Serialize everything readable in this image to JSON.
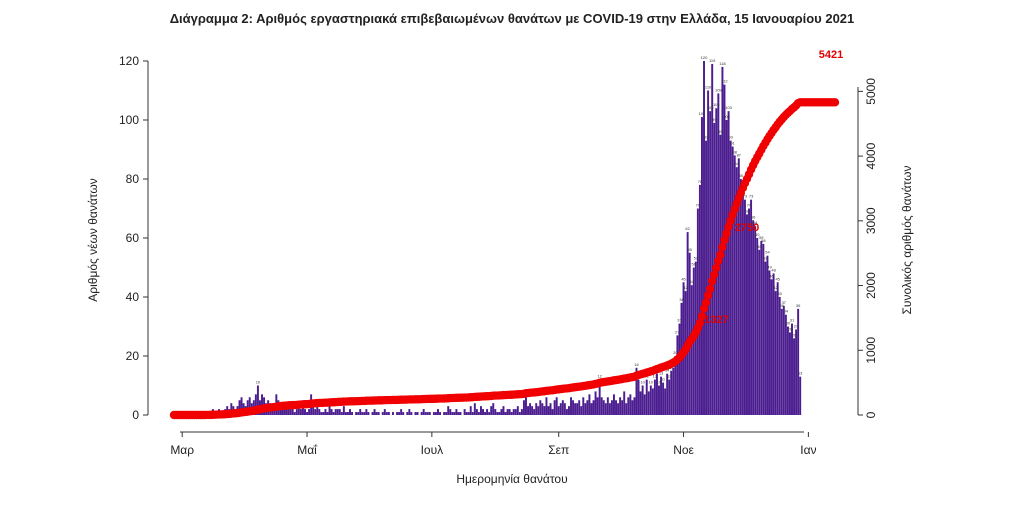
{
  "chart_data": {
    "type": "bar+line",
    "title": "Διάγραμμα 2: Αριθμός εργαστηριακά επιβεβαιωμένων θανάτων με COVID-19 στην Ελλάδα, 15 Ιανουαρίου 2021",
    "xlabel": "Ημερομηνία θανάτου",
    "ylabel_left": "Αριθμός νέων θανάτων",
    "ylabel_right": "Συνολικός αριθμός θανάτων",
    "ylim_left": [
      0,
      120
    ],
    "ylim_right": [
      0,
      5500
    ],
    "yticks_left": [
      0,
      20,
      40,
      60,
      80,
      100,
      120
    ],
    "yticks_right": [
      0,
      1000,
      2000,
      3000,
      4000,
      5000
    ],
    "x_start": "2020-02-26",
    "x_end": "2021-01-14",
    "x_ticks": [
      {
        "label": "Μαρ",
        "date": "2020-03-01"
      },
      {
        "label": "Μαΐ",
        "date": "2020-05-01"
      },
      {
        "label": "Ιουλ",
        "date": "2020-07-01"
      },
      {
        "label": "Σεπ",
        "date": "2020-09-01"
      },
      {
        "label": "Νοε",
        "date": "2020-11-01"
      },
      {
        "label": "Ιαν",
        "date": "2021-01-01"
      }
    ],
    "series": [
      {
        "name": "Αριθμός νέων θανάτων",
        "kind": "bar",
        "color": "#4b1d8f",
        "segments": [
          {
            "from": "2020-02-26",
            "values": [
              0,
              0,
              0,
              0,
              0,
              0,
              0,
              0,
              0,
              0,
              0,
              0,
              0,
              0,
              0,
              0,
              1,
              0,
              1,
              2,
              1,
              1,
              2,
              1,
              1,
              2,
              3,
              2,
              4,
              3,
              2,
              3,
              5,
              6,
              4,
              3,
              5,
              6,
              4,
              5,
              7,
              10,
              5,
              7,
              6,
              4,
              5,
              4,
              3,
              4,
              7,
              5,
              3,
              4,
              2,
              3,
              3,
              2,
              2,
              1,
              2,
              3,
              2,
              3,
              2,
              1,
              2,
              7,
              3,
              2,
              3,
              2,
              1,
              1,
              2,
              1,
              3,
              2,
              1,
              2,
              2,
              2,
              1,
              3,
              1,
              1,
              2,
              1,
              0,
              1,
              1,
              2,
              1,
              1,
              2,
              1,
              0,
              1,
              2,
              1,
              1,
              0,
              1,
              2,
              1,
              1,
              0,
              1,
              0,
              1,
              1,
              2,
              1,
              0,
              1,
              2,
              1,
              0,
              1,
              1,
              0,
              1,
              2,
              1,
              1,
              1,
              0,
              1,
              1,
              2,
              1,
              0,
              1,
              1,
              3,
              2,
              1,
              1,
              2,
              1,
              1,
              0,
              2,
              1,
              1,
              3,
              1,
              4,
              2,
              1,
              3,
              2,
              1,
              2,
              1,
              3,
              4,
              2,
              1,
              1,
              2,
              3,
              1,
              2,
              2,
              1,
              2,
              2,
              3,
              1,
              2,
              5,
              8,
              3,
              4,
              3,
              2,
              4,
              3,
              5,
              4,
              3,
              6,
              3,
              4,
              2,
              5,
              6,
              3,
              4,
              5,
              4,
              2,
              3,
              6,
              5,
              4,
              4,
              5,
              3,
              6,
              4,
              5,
              7,
              4,
              5,
              8,
              6,
              12,
              6,
              5,
              4,
              6,
              4,
              5,
              7,
              5,
              4,
              6,
              5,
              8,
              4,
              6,
              7,
              5,
              6,
              16,
              12,
              8,
              10,
              7,
              12,
              8,
              10,
              9,
              12,
              14,
              10,
              13,
              11,
              9,
              14,
              12,
              15,
              16,
              20,
              27,
              31,
              38,
              45,
              42,
              62,
              55,
              44,
              50,
              52,
              70,
              78,
              101,
              120,
              93,
              110,
              103,
              119,
              99,
              104,
              109,
              95,
              118,
              112,
              100,
              103,
              93,
              91,
              88,
              84,
              87,
              80,
              76,
              73,
              68,
              70,
              73,
              66,
              64,
              60,
              56,
              59,
              58,
              52,
              54,
              49,
              46,
              48,
              42,
              45,
              40,
              36,
              37,
              34,
              30,
              28,
              31,
              26,
              29,
              36,
              13
            ]
          }
        ]
      },
      {
        "name": "Συνολικός αριθμός θανάτων",
        "kind": "line",
        "color": "#f00000"
      }
    ],
    "annotations": [
      {
        "text": "5421",
        "date": "2021-01-14",
        "y_right": 5421
      },
      {
        "text": "2750",
        "date": "2020-12-04",
        "y_right": 2750
      },
      {
        "text": "1327",
        "date": "2020-11-19",
        "y_right": 1327
      }
    ]
  }
}
